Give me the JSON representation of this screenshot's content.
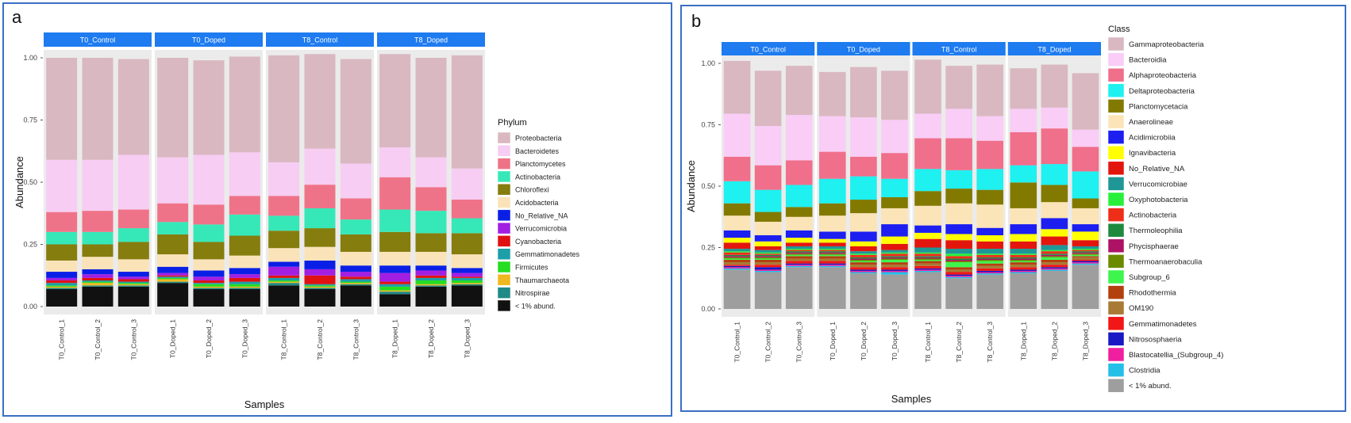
{
  "colors": {
    "proteobacteria": "#d9b8c1",
    "bacteroidetes": "#f7cdf3",
    "planctomycetes": "#ef7388",
    "actinobacteria": "#36e8b8",
    "chloroflexi": "#857d0e",
    "acidobacteria": "#fbe3b9",
    "no_relative": "#0a1fe6",
    "verrucomicrobia": "#a21fe1",
    "cyanobacteria": "#df1111",
    "gemmatimonadetes": "#1c9fa8",
    "firmicutes": "#25dd21",
    "thaumarchaeota": "#f0b820",
    "nitrospirae": "#1f8a86",
    "lt1_black": "#111111",
    "gammaproteobacteria": "#d9b8c1",
    "bacteroidia": "#f9cdf6",
    "alphaproteobacteria": "#f06f8a",
    "deltaproteobacteria": "#1ff0f0",
    "planctomycetacia": "#827a00",
    "anaerolineae": "#fbe4b7",
    "acidimicrobiia": "#1c1ff0",
    "ignavibacteria": "#ffff00",
    "no_relative_b": "#e3160e",
    "verrucomicrobiae": "#1f9797",
    "oxyphotobacteria": "#27f03b",
    "actinobacteria_b": "#ef2e1a",
    "thermoleophilia": "#1f8a3d",
    "phycisphaerae": "#ad1265",
    "thermoanaerobaculia": "#6b8a00",
    "subgroup_6": "#3ef54e",
    "rhodothermia": "#b3410e",
    "om190": "#a87a34",
    "gemmatimonadetes_b": "#f21616",
    "nitrososphaeria": "#1818c4",
    "blastocatellia": "#ef1fa0",
    "clostridia": "#26bfe8",
    "lt1_gray": "#9e9e9e",
    "strip": "#1e7bf0",
    "panel_bg": "#ebebeb",
    "border": "#3a6fc4"
  },
  "chart_data": [
    {
      "type": "bar",
      "panel_label": "a",
      "xlabel": "Samples",
      "ylabel": "Abundance",
      "ylim": [
        0,
        1
      ],
      "yticks": [
        "0.00",
        "0.25",
        "0.50",
        "0.75",
        "1.00"
      ],
      "legend_title": "Phylum",
      "legend_position": "right",
      "facets": [
        {
          "name": "T0_Control",
          "samples": [
            "T0_Control_1",
            "T0_Control_2",
            "T0_Control_3"
          ]
        },
        {
          "name": "T0_Doped",
          "samples": [
            "T0_Doped_1",
            "T0_Doped_2",
            "T0_Doped_3"
          ]
        },
        {
          "name": "T8_Control",
          "samples": [
            "T8_Control_1",
            "T8_Control_2",
            "T8_Control_3"
          ]
        },
        {
          "name": "T8_Doped",
          "samples": [
            "T8_Doped_1",
            "T8_Doped_2",
            "T8_Doped_3"
          ]
        }
      ],
      "series": [
        {
          "name": "< 1% abund.",
          "color_key": "lt1_black",
          "values": [
            0.07,
            0.08,
            0.08,
            0.095,
            0.07,
            0.07,
            0.085,
            0.07,
            0.085,
            0.05,
            0.08,
            0.085
          ]
        },
        {
          "name": "Nitrospirae",
          "color_key": "nitrospirae",
          "values": [
            0.005,
            0.005,
            0.005,
            0.005,
            0.005,
            0.005,
            0.01,
            0.005,
            0.005,
            0.01,
            0.005,
            0.005
          ]
        },
        {
          "name": "Thaumarchaeota",
          "color_key": "thaumarchaeota",
          "values": [
            0.005,
            0.01,
            0.005,
            0.01,
            0.005,
            0.005,
            0.005,
            0.005,
            0.005,
            0.005,
            0.005,
            0.005
          ]
        },
        {
          "name": "Firmicutes",
          "color_key": "firmicutes",
          "values": [
            0.005,
            0.005,
            0.005,
            0.005,
            0.01,
            0.01,
            0.005,
            0.005,
            0.005,
            0.015,
            0.015,
            0.01
          ]
        },
        {
          "name": "Gemmatimonadetes",
          "color_key": "gemmatimonadetes",
          "values": [
            0.01,
            0.005,
            0.005,
            0.005,
            0.005,
            0.01,
            0.01,
            0.005,
            0.01,
            0.01,
            0.01,
            0.01
          ]
        },
        {
          "name": "Cyanobacteria",
          "color_key": "cyanobacteria",
          "values": [
            0.01,
            0.01,
            0.01,
            0.005,
            0.01,
            0.015,
            0.01,
            0.035,
            0.01,
            0.01,
            0.01,
            0.005
          ]
        },
        {
          "name": "Verrucomicrobia",
          "color_key": "verrucomicrobia",
          "values": [
            0.01,
            0.015,
            0.01,
            0.01,
            0.015,
            0.015,
            0.035,
            0.025,
            0.02,
            0.035,
            0.02,
            0.015
          ]
        },
        {
          "name": "No_Relative_NA",
          "color_key": "no_relative",
          "values": [
            0.025,
            0.02,
            0.02,
            0.025,
            0.025,
            0.025,
            0.02,
            0.035,
            0.025,
            0.03,
            0.02,
            0.02
          ]
        },
        {
          "name": "Acidobacteria",
          "color_key": "acidobacteria",
          "values": [
            0.045,
            0.05,
            0.05,
            0.05,
            0.045,
            0.05,
            0.055,
            0.055,
            0.055,
            0.055,
            0.055,
            0.055
          ]
        },
        {
          "name": "Chloroflexi",
          "color_key": "chloroflexi",
          "values": [
            0.065,
            0.05,
            0.07,
            0.08,
            0.07,
            0.08,
            0.07,
            0.075,
            0.07,
            0.08,
            0.075,
            0.085
          ]
        },
        {
          "name": "Actinobacteria",
          "color_key": "actinobacteria",
          "values": [
            0.05,
            0.05,
            0.055,
            0.05,
            0.07,
            0.085,
            0.06,
            0.08,
            0.06,
            0.09,
            0.09,
            0.06
          ]
        },
        {
          "name": "Planctomycetes",
          "color_key": "planctomycetes",
          "values": [
            0.08,
            0.085,
            0.075,
            0.075,
            0.08,
            0.075,
            0.08,
            0.095,
            0.085,
            0.13,
            0.095,
            0.075
          ]
        },
        {
          "name": "Bacteroidetes",
          "color_key": "bacteroidetes",
          "values": [
            0.21,
            0.205,
            0.22,
            0.185,
            0.2,
            0.175,
            0.135,
            0.145,
            0.14,
            0.12,
            0.12,
            0.125
          ]
        },
        {
          "name": "Proteobacteria",
          "color_key": "proteobacteria",
          "values": [
            0.41,
            0.41,
            0.385,
            0.4,
            0.38,
            0.385,
            0.43,
            0.38,
            0.42,
            0.375,
            0.4,
            0.455
          ]
        }
      ],
      "legend_order": [
        "Proteobacteria",
        "Bacteroidetes",
        "Planctomycetes",
        "Actinobacteria",
        "Chloroflexi",
        "Acidobacteria",
        "No_Relative_NA",
        "Verrucomicrobia",
        "Cyanobacteria",
        "Gemmatimonadetes",
        "Firmicutes",
        "Thaumarchaeota",
        "Nitrospirae",
        "< 1% abund."
      ]
    },
    {
      "type": "bar",
      "panel_label": "b",
      "xlabel": "Samples",
      "ylabel": "Abundance",
      "ylim": [
        0,
        1
      ],
      "yticks": [
        "0.00",
        "0.25",
        "0.50",
        "0.75",
        "1.00"
      ],
      "legend_title": "Class",
      "legend_position": "right",
      "facets": [
        {
          "name": "T0_Control",
          "samples": [
            "T0_Control_1",
            "T0_Control_2",
            "T0_Control_3"
          ]
        },
        {
          "name": "T0_Doped",
          "samples": [
            "T0_Doped_1",
            "T0_Doped_2",
            "T0_Doped_3"
          ]
        },
        {
          "name": "T8_Control",
          "samples": [
            "T8_Control_1",
            "T8_Control_2",
            "T8_Control_3"
          ]
        },
        {
          "name": "T8_Doped",
          "samples": [
            "T8_Doped_1",
            "T8_Doped_2",
            "T8_Doped_3"
          ]
        }
      ],
      "series": [
        {
          "name": "< 1% abund.",
          "color_key": "lt1_gray",
          "values": [
            0.16,
            0.15,
            0.17,
            0.17,
            0.145,
            0.14,
            0.15,
            0.125,
            0.14,
            0.145,
            0.155,
            0.18
          ]
        },
        {
          "name": "Clostridia",
          "color_key": "clostridia",
          "values": [
            0.005,
            0.005,
            0.005,
            0.005,
            0.005,
            0.01,
            0.005,
            0.005,
            0.005,
            0.005,
            0.005,
            0.005
          ]
        },
        {
          "name": "Blastocatellia_(Subgroup_4)",
          "color_key": "blastocatellia",
          "values": [
            0.005,
            0.005,
            0.005,
            0.005,
            0.005,
            0.005,
            0.005,
            0.005,
            0.005,
            0.005,
            0.005,
            0.005
          ]
        },
        {
          "name": "Nitrososphaeria",
          "color_key": "nitrososphaeria",
          "values": [
            0.005,
            0.01,
            0.005,
            0.005,
            0.005,
            0.005,
            0.005,
            0.005,
            0.005,
            0.005,
            0.005,
            0.005
          ]
        },
        {
          "name": "Gemmatimonadetes",
          "color_key": "gemmatimonadetes_b",
          "values": [
            0.005,
            0.01,
            0.01,
            0.01,
            0.01,
            0.01,
            0.01,
            0.01,
            0.01,
            0.01,
            0.01,
            0.005
          ]
        },
        {
          "name": "OM190",
          "color_key": "om190",
          "values": [
            0.01,
            0.01,
            0.01,
            0.01,
            0.01,
            0.01,
            0.01,
            0.01,
            0.01,
            0.01,
            0.01,
            0.01
          ]
        },
        {
          "name": "Rhodothermia",
          "color_key": "rhodothermia",
          "values": [
            0.01,
            0.01,
            0.01,
            0.01,
            0.01,
            0.01,
            0.01,
            0.01,
            0.01,
            0.01,
            0.01,
            0.005
          ]
        },
        {
          "name": "Subgroup_6",
          "color_key": "subgroup_6",
          "values": [
            0.005,
            0.005,
            0.005,
            0.005,
            0.005,
            0.01,
            0.005,
            0.02,
            0.01,
            0.005,
            0.01,
            0.005
          ]
        },
        {
          "name": "Thermoanaerobaculia",
          "color_key": "thermoanaerobaculia",
          "values": [
            0.005,
            0.005,
            0.005,
            0.005,
            0.005,
            0.005,
            0.005,
            0.005,
            0.005,
            0.005,
            0.005,
            0.005
          ]
        },
        {
          "name": "Phycisphaerae",
          "color_key": "phycisphaerae",
          "values": [
            0.005,
            0.005,
            0.005,
            0.005,
            0.005,
            0.005,
            0.005,
            0.005,
            0.005,
            0.005,
            0.005,
            0.005
          ]
        },
        {
          "name": "Thermoleophilia",
          "color_key": "thermoleophilia",
          "values": [
            0.005,
            0.005,
            0.005,
            0.005,
            0.005,
            0.005,
            0.005,
            0.005,
            0.005,
            0.005,
            0.005,
            0.005
          ]
        },
        {
          "name": "Actinobacteria",
          "color_key": "actinobacteria_b",
          "values": [
            0.01,
            0.005,
            0.005,
            0.005,
            0.01,
            0.01,
            0.01,
            0.01,
            0.01,
            0.01,
            0.01,
            0.005
          ]
        },
        {
          "name": "Oxyphotobacteria",
          "color_key": "oxyphotobacteria",
          "values": [
            0.005,
            0.005,
            0.005,
            0.005,
            0.005,
            0.005,
            0.005,
            0.01,
            0.005,
            0.005,
            0.005,
            0.005
          ]
        },
        {
          "name": "Verrucomicrobiae",
          "color_key": "verrucomicrobiae",
          "values": [
            0.01,
            0.01,
            0.01,
            0.01,
            0.01,
            0.01,
            0.02,
            0.02,
            0.02,
            0.02,
            0.02,
            0.01
          ]
        },
        {
          "name": "No_Relative_NA",
          "color_key": "no_relative_b",
          "values": [
            0.025,
            0.015,
            0.015,
            0.015,
            0.02,
            0.025,
            0.035,
            0.035,
            0.03,
            0.03,
            0.035,
            0.025
          ]
        },
        {
          "name": "Ignavibacteria",
          "color_key": "ignavibacteria",
          "values": [
            0.02,
            0.02,
            0.02,
            0.015,
            0.02,
            0.03,
            0.025,
            0.025,
            0.025,
            0.03,
            0.03,
            0.035
          ]
        },
        {
          "name": "Acidimicrobiia",
          "color_key": "acidimicrobiia",
          "values": [
            0.03,
            0.025,
            0.03,
            0.03,
            0.04,
            0.05,
            0.03,
            0.04,
            0.03,
            0.04,
            0.045,
            0.03
          ]
        },
        {
          "name": "Anaerolineae",
          "color_key": "anaerolineae",
          "values": [
            0.06,
            0.055,
            0.055,
            0.065,
            0.075,
            0.065,
            0.08,
            0.085,
            0.095,
            0.065,
            0.065,
            0.065
          ]
        },
        {
          "name": "Planctomycetacia",
          "color_key": "planctomycetacia",
          "values": [
            0.05,
            0.04,
            0.04,
            0.05,
            0.055,
            0.045,
            0.06,
            0.06,
            0.06,
            0.105,
            0.07,
            0.04
          ]
        },
        {
          "name": "Deltaproteobacteria",
          "color_key": "deltaproteobacteria",
          "values": [
            0.09,
            0.09,
            0.09,
            0.1,
            0.095,
            0.075,
            0.09,
            0.075,
            0.085,
            0.07,
            0.085,
            0.11
          ]
        },
        {
          "name": "Alphaproteobacteria",
          "color_key": "alphaproteobacteria",
          "values": [
            0.1,
            0.1,
            0.1,
            0.11,
            0.08,
            0.105,
            0.125,
            0.13,
            0.115,
            0.135,
            0.145,
            0.1
          ]
        },
        {
          "name": "Bacteroidia",
          "color_key": "bacteroidia",
          "values": [
            0.175,
            0.16,
            0.185,
            0.145,
            0.16,
            0.135,
            0.1,
            0.12,
            0.1,
            0.095,
            0.085,
            0.07
          ]
        },
        {
          "name": "Gammaproteobacteria",
          "color_key": "gammaproteobacteria",
          "values": [
            0.215,
            0.225,
            0.2,
            0.18,
            0.205,
            0.2,
            0.22,
            0.175,
            0.21,
            0.165,
            0.175,
            0.23
          ]
        }
      ],
      "legend_order": [
        "Gammaproteobacteria",
        "Bacteroidia",
        "Alphaproteobacteria",
        "Deltaproteobacteria",
        "Planctomycetacia",
        "Anaerolineae",
        "Acidimicrobiia",
        "Ignavibacteria",
        "No_Relative_NA",
        "Verrucomicrobiae",
        "Oxyphotobacteria",
        "Actinobacteria",
        "Thermoleophilia",
        "Phycisphaerae",
        "Thermoanaerobaculia",
        "Subgroup_6",
        "Rhodothermia",
        "OM190",
        "Gemmatimonadetes",
        "Nitrososphaeria",
        "Blastocatellia_(Subgroup_4)",
        "Clostridia",
        "< 1% abund."
      ]
    }
  ]
}
